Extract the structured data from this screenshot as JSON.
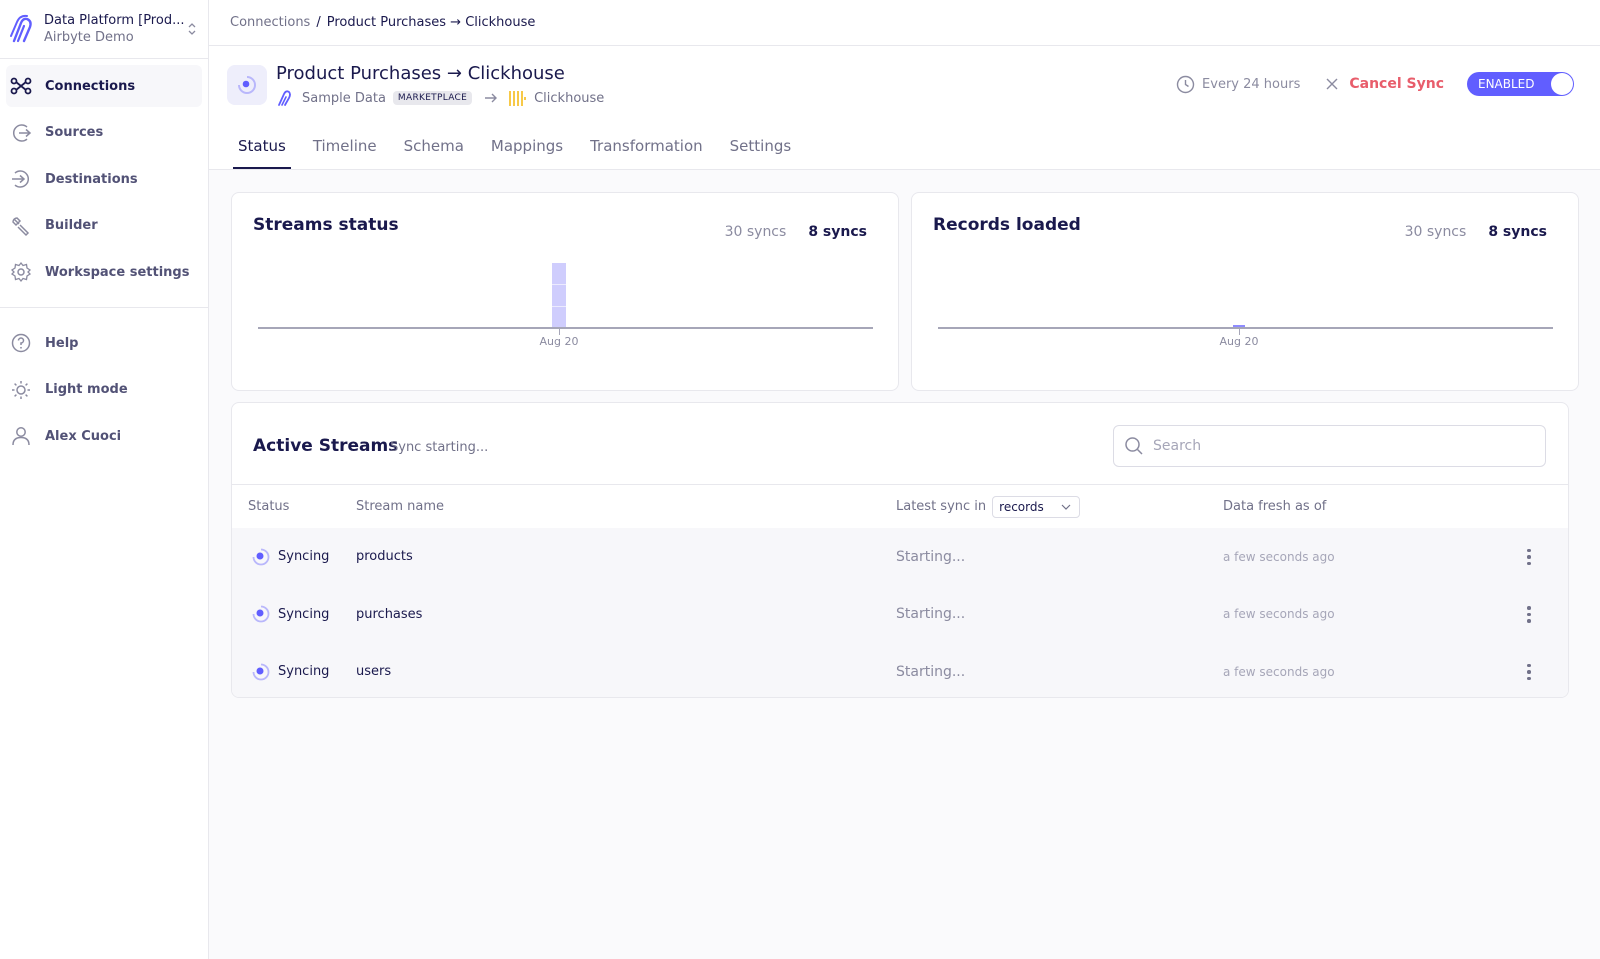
{
  "workspace": {
    "name": "Data Platform [Prod...",
    "org": "Airbyte Demo"
  },
  "sidebar": {
    "items": [
      {
        "label": "Connections",
        "icon": "connections-icon",
        "active": true
      },
      {
        "label": "Sources",
        "icon": "source-icon"
      },
      {
        "label": "Destinations",
        "icon": "destination-icon"
      },
      {
        "label": "Builder",
        "icon": "builder-icon"
      },
      {
        "label": "Workspace settings",
        "icon": "gear-icon"
      }
    ],
    "bottom": [
      {
        "label": "Help",
        "icon": "help-icon"
      },
      {
        "label": "Light mode",
        "icon": "sun-icon"
      },
      {
        "label": "Alex Cuoci",
        "icon": "user-icon"
      }
    ]
  },
  "breadcrumb": {
    "root": "Connections",
    "separator": "/",
    "current": "Product Purchases → Clickhouse"
  },
  "connection": {
    "title": "Product Purchases → Clickhouse",
    "source": "Sample Data",
    "source_badge": "MARKETPLACE",
    "destination": "Clickhouse",
    "schedule": "Every 24 hours",
    "cancel_label": "Cancel Sync",
    "toggle_label": "ENABLED"
  },
  "tabs": [
    "Status",
    "Timeline",
    "Schema",
    "Mappings",
    "Transformation",
    "Settings"
  ],
  "streams_status": {
    "title": "Streams status",
    "opt_30": "30 syncs",
    "opt_8": "8 syncs"
  },
  "records_loaded": {
    "title": "Records loaded",
    "opt_30": "30 syncs",
    "opt_8": "8 syncs"
  },
  "chart_data": [
    {
      "type": "bar",
      "title": "Streams status",
      "categories": [
        "Aug 20"
      ],
      "values": [
        3
      ],
      "grid": false
    },
    {
      "type": "bar",
      "title": "Records loaded",
      "categories": [
        "Aug 20"
      ],
      "values": [
        0
      ],
      "grid": false
    }
  ],
  "active_streams": {
    "title": "Active Streams",
    "status": "Sync starting...",
    "search_placeholder": "Search",
    "columns": {
      "status": "Status",
      "name": "Stream name",
      "latest": "Latest sync in",
      "fresh": "Data fresh as of"
    },
    "unit": "records",
    "rows": [
      {
        "status": "Syncing",
        "name": "products",
        "latest": "Starting...",
        "fresh": "a few seconds ago"
      },
      {
        "status": "Syncing",
        "name": "purchases",
        "latest": "Starting...",
        "fresh": "a few seconds ago"
      },
      {
        "status": "Syncing",
        "name": "users",
        "latest": "Starting...",
        "fresh": "a few seconds ago"
      }
    ]
  },
  "colors": {
    "accent": "#615eff",
    "danger": "#e85d6b",
    "bar": "#cfcdfd",
    "text": "#1a194d"
  }
}
